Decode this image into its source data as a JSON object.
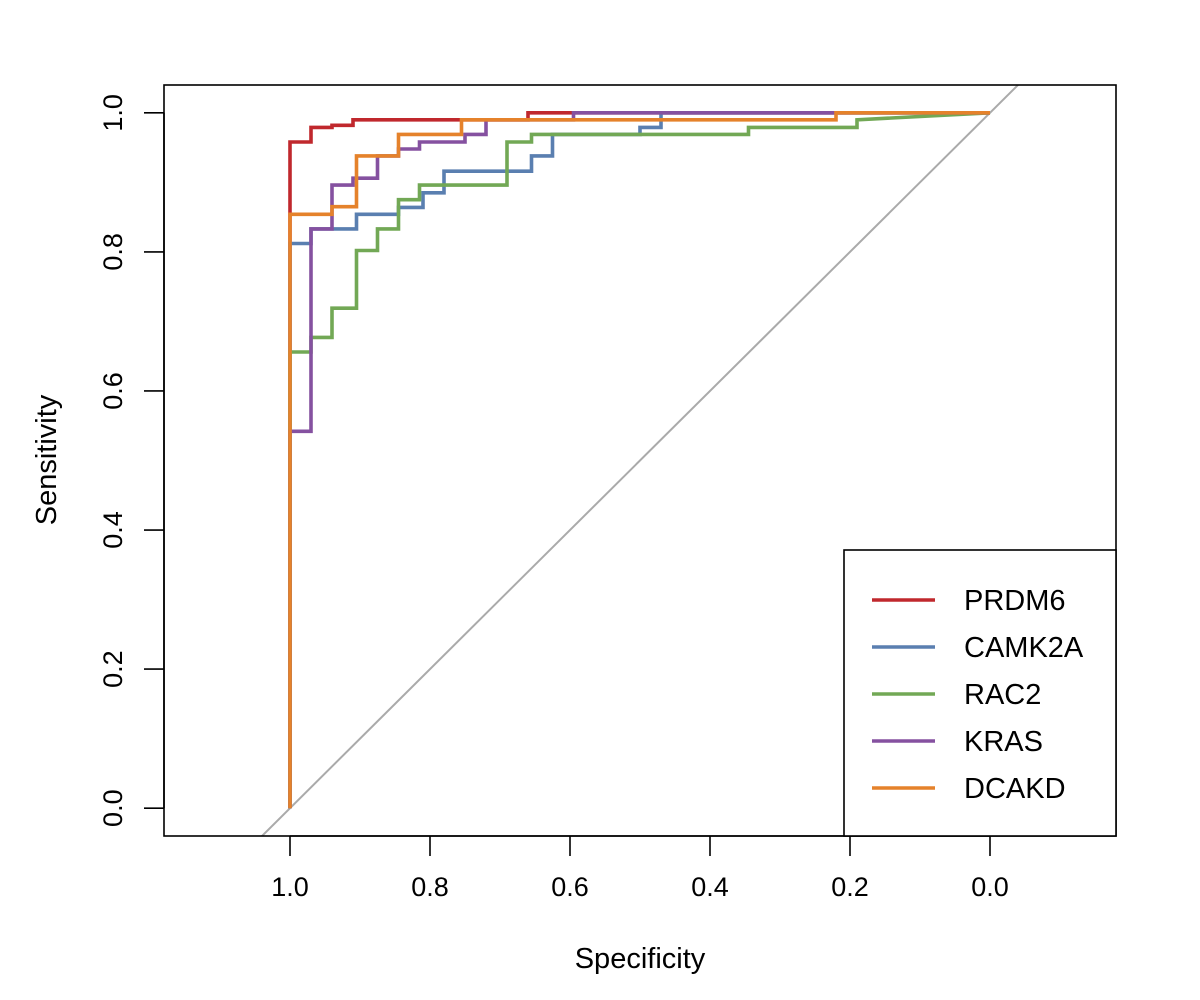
{
  "chart_data": {
    "type": "line",
    "title": "",
    "xlabel": "Specificity",
    "ylabel": "Sensitivity",
    "xlim": [
      1.18,
      -0.18
    ],
    "ylim": [
      -0.04,
      1.04
    ],
    "x_reversed": true,
    "grid": false,
    "legend_position": "bottom-right",
    "x_ticks": [
      1.0,
      0.8,
      0.6,
      0.4,
      0.2,
      0.0
    ],
    "x_tick_labels": [
      "1.0",
      "0.8",
      "0.6",
      "0.4",
      "0.2",
      "0.0"
    ],
    "y_ticks": [
      0.0,
      0.2,
      0.4,
      0.6,
      0.8,
      1.0
    ],
    "y_tick_labels": [
      "0.0",
      "0.2",
      "0.4",
      "0.6",
      "0.8",
      "1.0"
    ],
    "reference_line": {
      "color": "#aaaaaa",
      "points": [
        [
          1.0,
          0.0
        ],
        [
          0.0,
          1.0
        ]
      ]
    },
    "series": [
      {
        "name": "PRDM6",
        "color": "#c0282d",
        "points": [
          [
            1.0,
            0.0
          ],
          [
            1.0,
            0.958
          ],
          [
            0.97,
            0.958
          ],
          [
            0.97,
            0.979
          ],
          [
            0.94,
            0.979
          ],
          [
            0.94,
            0.982
          ],
          [
            0.91,
            0.982
          ],
          [
            0.91,
            0.99
          ],
          [
            0.66,
            0.99
          ],
          [
            0.66,
            1.0
          ],
          [
            0.0,
            1.0
          ]
        ]
      },
      {
        "name": "CAMK2A",
        "color": "#5a7fb0",
        "points": [
          [
            1.0,
            0.0
          ],
          [
            1.0,
            0.812
          ],
          [
            0.97,
            0.812
          ],
          [
            0.97,
            0.833
          ],
          [
            0.905,
            0.833
          ],
          [
            0.905,
            0.854
          ],
          [
            0.845,
            0.854
          ],
          [
            0.845,
            0.864
          ],
          [
            0.81,
            0.864
          ],
          [
            0.81,
            0.885
          ],
          [
            0.78,
            0.885
          ],
          [
            0.78,
            0.916
          ],
          [
            0.655,
            0.916
          ],
          [
            0.655,
            0.938
          ],
          [
            0.625,
            0.938
          ],
          [
            0.625,
            0.969
          ],
          [
            0.5,
            0.969
          ],
          [
            0.5,
            0.979
          ],
          [
            0.47,
            0.979
          ],
          [
            0.47,
            1.0
          ],
          [
            0.0,
            1.0
          ]
        ]
      },
      {
        "name": "RAC2",
        "color": "#72a855",
        "points": [
          [
            1.0,
            0.0
          ],
          [
            1.0,
            0.656
          ],
          [
            0.97,
            0.656
          ],
          [
            0.97,
            0.677
          ],
          [
            0.94,
            0.677
          ],
          [
            0.94,
            0.719
          ],
          [
            0.905,
            0.719
          ],
          [
            0.905,
            0.802
          ],
          [
            0.875,
            0.802
          ],
          [
            0.875,
            0.833
          ],
          [
            0.845,
            0.833
          ],
          [
            0.845,
            0.875
          ],
          [
            0.815,
            0.875
          ],
          [
            0.815,
            0.896
          ],
          [
            0.69,
            0.896
          ],
          [
            0.69,
            0.958
          ],
          [
            0.655,
            0.958
          ],
          [
            0.655,
            0.969
          ],
          [
            0.345,
            0.969
          ],
          [
            0.345,
            0.979
          ],
          [
            0.19,
            0.979
          ],
          [
            0.19,
            0.99
          ],
          [
            0.0,
            1.0
          ]
        ]
      },
      {
        "name": "KRAS",
        "color": "#8551a0",
        "points": [
          [
            1.0,
            0.0
          ],
          [
            1.0,
            0.542
          ],
          [
            0.97,
            0.542
          ],
          [
            0.97,
            0.833
          ],
          [
            0.94,
            0.833
          ],
          [
            0.94,
            0.896
          ],
          [
            0.91,
            0.896
          ],
          [
            0.91,
            0.906
          ],
          [
            0.875,
            0.906
          ],
          [
            0.875,
            0.938
          ],
          [
            0.845,
            0.938
          ],
          [
            0.845,
            0.948
          ],
          [
            0.815,
            0.948
          ],
          [
            0.815,
            0.958
          ],
          [
            0.75,
            0.958
          ],
          [
            0.75,
            0.969
          ],
          [
            0.72,
            0.969
          ],
          [
            0.72,
            0.99
          ],
          [
            0.595,
            0.99
          ],
          [
            0.595,
            1.0
          ],
          [
            0.0,
            1.0
          ]
        ]
      },
      {
        "name": "DCAKD",
        "color": "#e5822b",
        "points": [
          [
            1.0,
            0.0
          ],
          [
            1.0,
            0.854
          ],
          [
            0.94,
            0.854
          ],
          [
            0.94,
            0.865
          ],
          [
            0.905,
            0.865
          ],
          [
            0.905,
            0.938
          ],
          [
            0.845,
            0.938
          ],
          [
            0.845,
            0.969
          ],
          [
            0.755,
            0.969
          ],
          [
            0.755,
            0.99
          ],
          [
            0.22,
            0.99
          ],
          [
            0.22,
            1.0
          ],
          [
            0.0,
            1.0
          ]
        ]
      }
    ]
  }
}
